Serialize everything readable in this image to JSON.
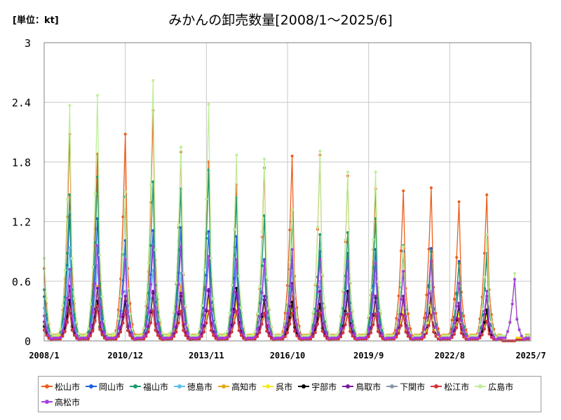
{
  "header": {
    "unit": "[単位：kt]",
    "title": "みかんの卸売数量[2008/1～2025/6]"
  },
  "chart_data": {
    "type": "line",
    "title": "みかんの卸売数量[2008/1～2025/6]",
    "unit": "[単位：kt]",
    "xlabel": "",
    "ylabel": "",
    "ylim": [
      0,
      3
    ],
    "yticks": [
      "0",
      "0.6",
      "1.2",
      "1.8",
      "2.4",
      "3"
    ],
    "xticks": [
      {
        "label": "2008/1",
        "month_index": 0
      },
      {
        "label": "2010/12",
        "month_index": 35
      },
      {
        "label": "2013/11",
        "month_index": 70
      },
      {
        "label": "2016/10",
        "month_index": 105
      },
      {
        "label": "2019/9",
        "month_index": 140
      },
      {
        "label": "2022/8",
        "month_index": 175
      },
      {
        "label": "2025/7",
        "month_index": 210
      }
    ],
    "grid": true,
    "legend_position": "bottom",
    "start_month": "2008/1",
    "end_month": "2025/6",
    "series": [
      {
        "name": "松山市",
        "color": "#ed5f1b",
        "peaks": [
          2.08,
          1.88,
          2.08,
          2.32,
          1.9,
          1.8,
          1.57,
          1.74,
          1.86,
          1.87,
          1.66,
          1.53,
          1.51,
          1.54,
          1.4,
          1.47,
          0
        ],
        "summer": 0.04
      },
      {
        "name": "岡山市",
        "color": "#1f5fe0",
        "peaks": [
          1.27,
          1.23,
          1.01,
          1.11,
          1.14,
          1.1,
          1.05,
          0.82,
          0.81,
          0.9,
          0.88,
          0.92,
          0.9,
          0.93,
          0.8,
          0.88,
          0
        ],
        "summer": 0.03
      },
      {
        "name": "福山市",
        "color": "#1e9a6e",
        "peaks": [
          1.47,
          1.65,
          1.45,
          1.6,
          1.53,
          1.72,
          1.44,
          1.26,
          1.2,
          1.07,
          1.09,
          1.23,
          0.96,
          0.9,
          0.78,
          0.86,
          0
        ],
        "summer": 0.03
      },
      {
        "name": "徳島市",
        "color": "#5ec0e8",
        "peaks": [
          0.94,
          0.76,
          0.5,
          0.71,
          0.68,
          0.85,
          0.7,
          0.7,
          0.71,
          0.6,
          0.65,
          0.65,
          0.7,
          0.55,
          0.55,
          0.3,
          0
        ],
        "summer": 0.05
      },
      {
        "name": "高知市",
        "color": "#e8a817",
        "peaks": [
          0.45,
          0.55,
          0.42,
          0.5,
          0.55,
          0.5,
          0.5,
          0.45,
          0.45,
          0.45,
          0.45,
          0.45,
          0.42,
          0.4,
          0.35,
          0.32,
          0
        ],
        "summer": 0.06
      },
      {
        "name": "呉市",
        "color": "#f4ec1c",
        "peaks": [
          0.42,
          0.45,
          0.4,
          0.45,
          0.45,
          0.42,
          0.4,
          0.38,
          0.38,
          0.35,
          0.35,
          0.35,
          0.32,
          0.3,
          0.28,
          0.27,
          0
        ],
        "summer": 0.05
      },
      {
        "name": "宇部市",
        "color": "#000000",
        "peaks": [
          0.41,
          0.4,
          0.4,
          0.48,
          0.45,
          0.5,
          0.53,
          0.41,
          0.39,
          0.37,
          0.5,
          0.43,
          0.45,
          0.47,
          0.35,
          0.31,
          0
        ],
        "summer": 0.02
      },
      {
        "name": "鳥取市",
        "color": "#7a1aa0",
        "peaks": [
          0.55,
          0.53,
          0.45,
          0.5,
          0.48,
          0.52,
          0.48,
          0.45,
          0.58,
          0.5,
          0.45,
          0.45,
          0.45,
          0.5,
          0.38,
          0.45,
          0
        ],
        "summer": 0.02
      },
      {
        "name": "下関市",
        "color": "#8a98a8",
        "peaks": [
          0.3,
          0.32,
          0.3,
          0.32,
          0.3,
          0.3,
          0.3,
          0.28,
          0.28,
          0.28,
          0.28,
          0.28,
          0.25,
          0.25,
          0.22,
          0.2,
          0
        ],
        "summer": 0.02
      },
      {
        "name": "松江市",
        "color": "#d6333a",
        "peaks": [
          0.32,
          0.35,
          0.3,
          0.3,
          0.3,
          0.3,
          0.3,
          0.28,
          0.28,
          0.28,
          0.27,
          0.27,
          0.26,
          0.26,
          0.22,
          0.2,
          0
        ],
        "summer": 0.02
      },
      {
        "name": "広島市",
        "color": "#bfee98",
        "peaks": [
          2.37,
          2.47,
          1.5,
          2.62,
          1.95,
          2.38,
          1.87,
          1.83,
          1.32,
          1.91,
          1.7,
          1.7,
          0.95,
          0.6,
          0.55,
          1.07,
          0.68
        ],
        "summer": 0.05
      },
      {
        "name": "高松市",
        "color": "#a63ee0",
        "peaks": [
          0.72,
          0.96,
          0.82,
          0.95,
          0.95,
          0.85,
          0.82,
          0.8,
          0.92,
          0.82,
          0.8,
          0.78,
          0.7,
          0.8,
          0.58,
          0.5,
          0.62
        ],
        "summer": 0.03
      }
    ]
  }
}
